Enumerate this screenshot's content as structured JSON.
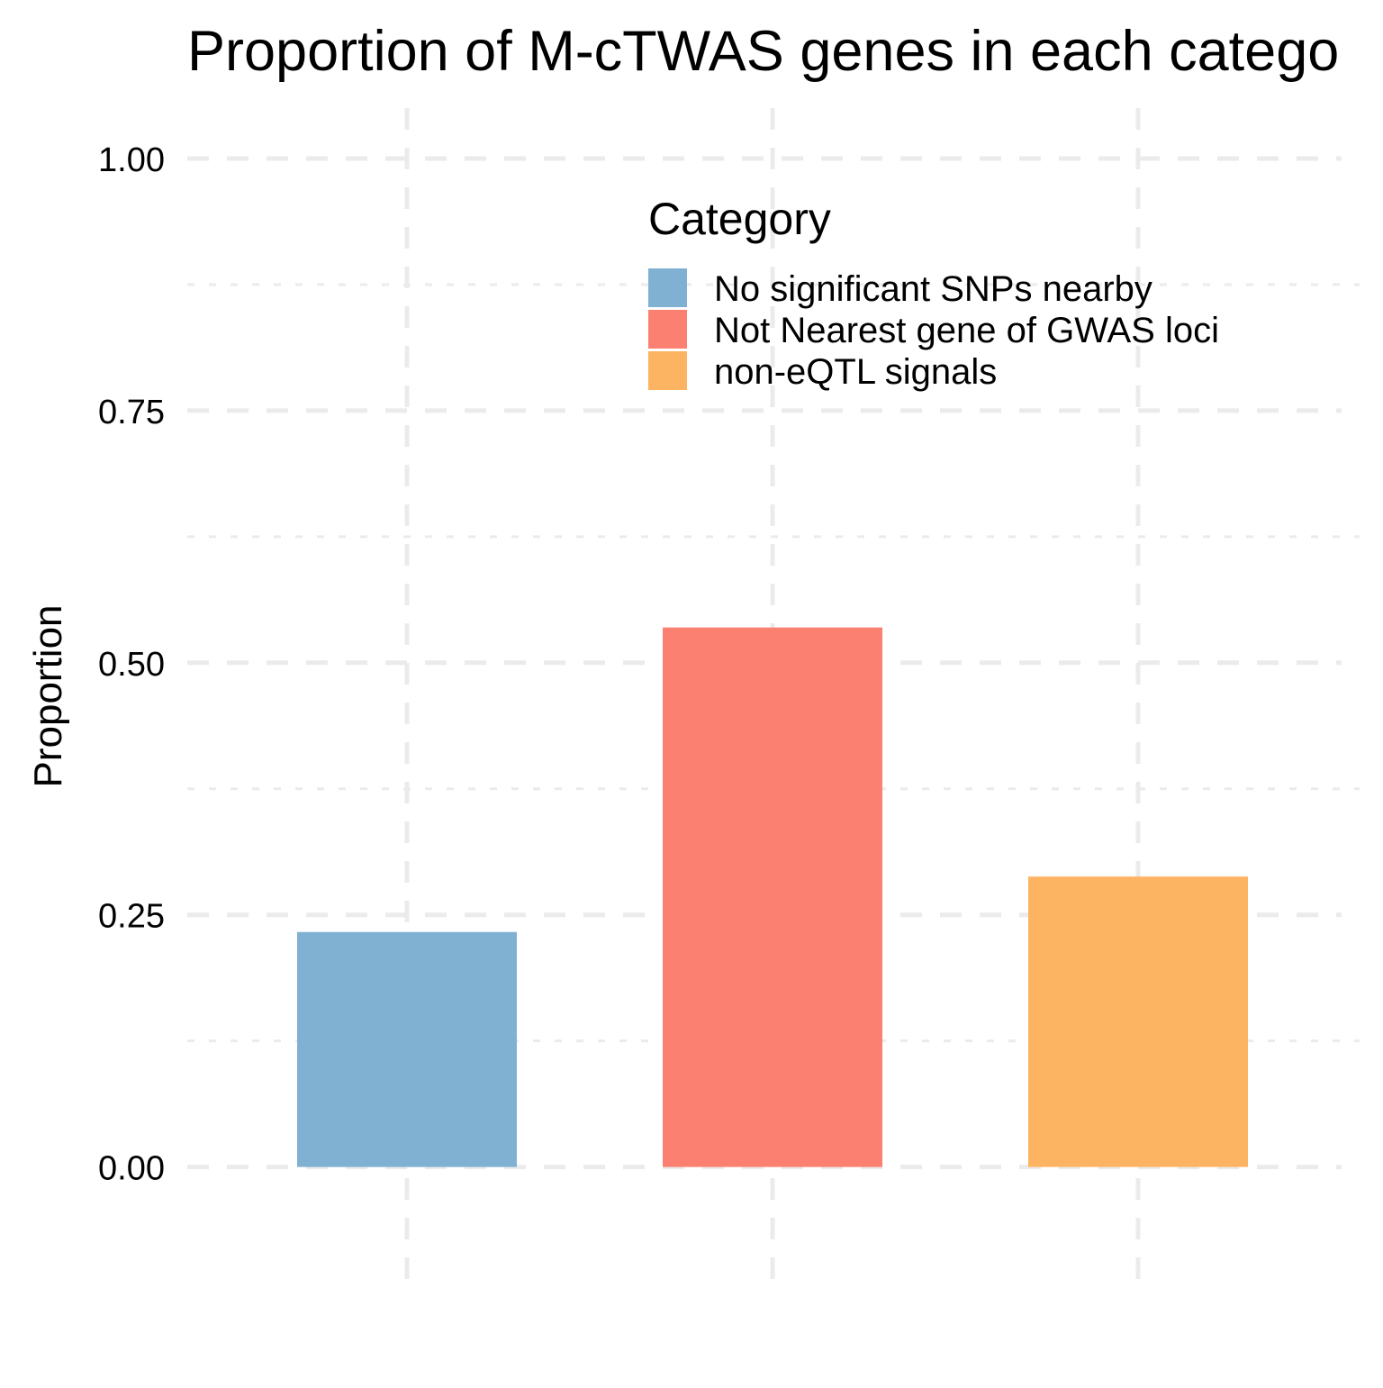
{
  "chart_data": {
    "type": "bar",
    "title": "Proportion of M-cTWAS genes in each catego",
    "xlabel": "",
    "ylabel": "Proportion",
    "categories": [
      "No significant SNPs nearby",
      "Not Nearest gene of GWAS loci",
      "non-eQTL signals"
    ],
    "values": [
      0.233,
      0.535,
      0.288
    ],
    "colors": [
      "#80B1D3",
      "#FB8072",
      "#FDB462"
    ],
    "ylim": [
      -0.12,
      1.05
    ],
    "yticks": [
      0.0,
      0.25,
      0.5,
      0.75,
      1.0
    ],
    "ytick_labels": [
      "0.00",
      "0.25",
      "0.50",
      "0.75",
      "1.00"
    ],
    "grid": true,
    "grid_color": "#EBEBEB",
    "legend": {
      "title": "Category",
      "placement": "top-right (inside plot)",
      "items": [
        "No significant SNPs nearby",
        "Not Nearest gene of GWAS loci",
        "non-eQTL signals"
      ]
    }
  }
}
